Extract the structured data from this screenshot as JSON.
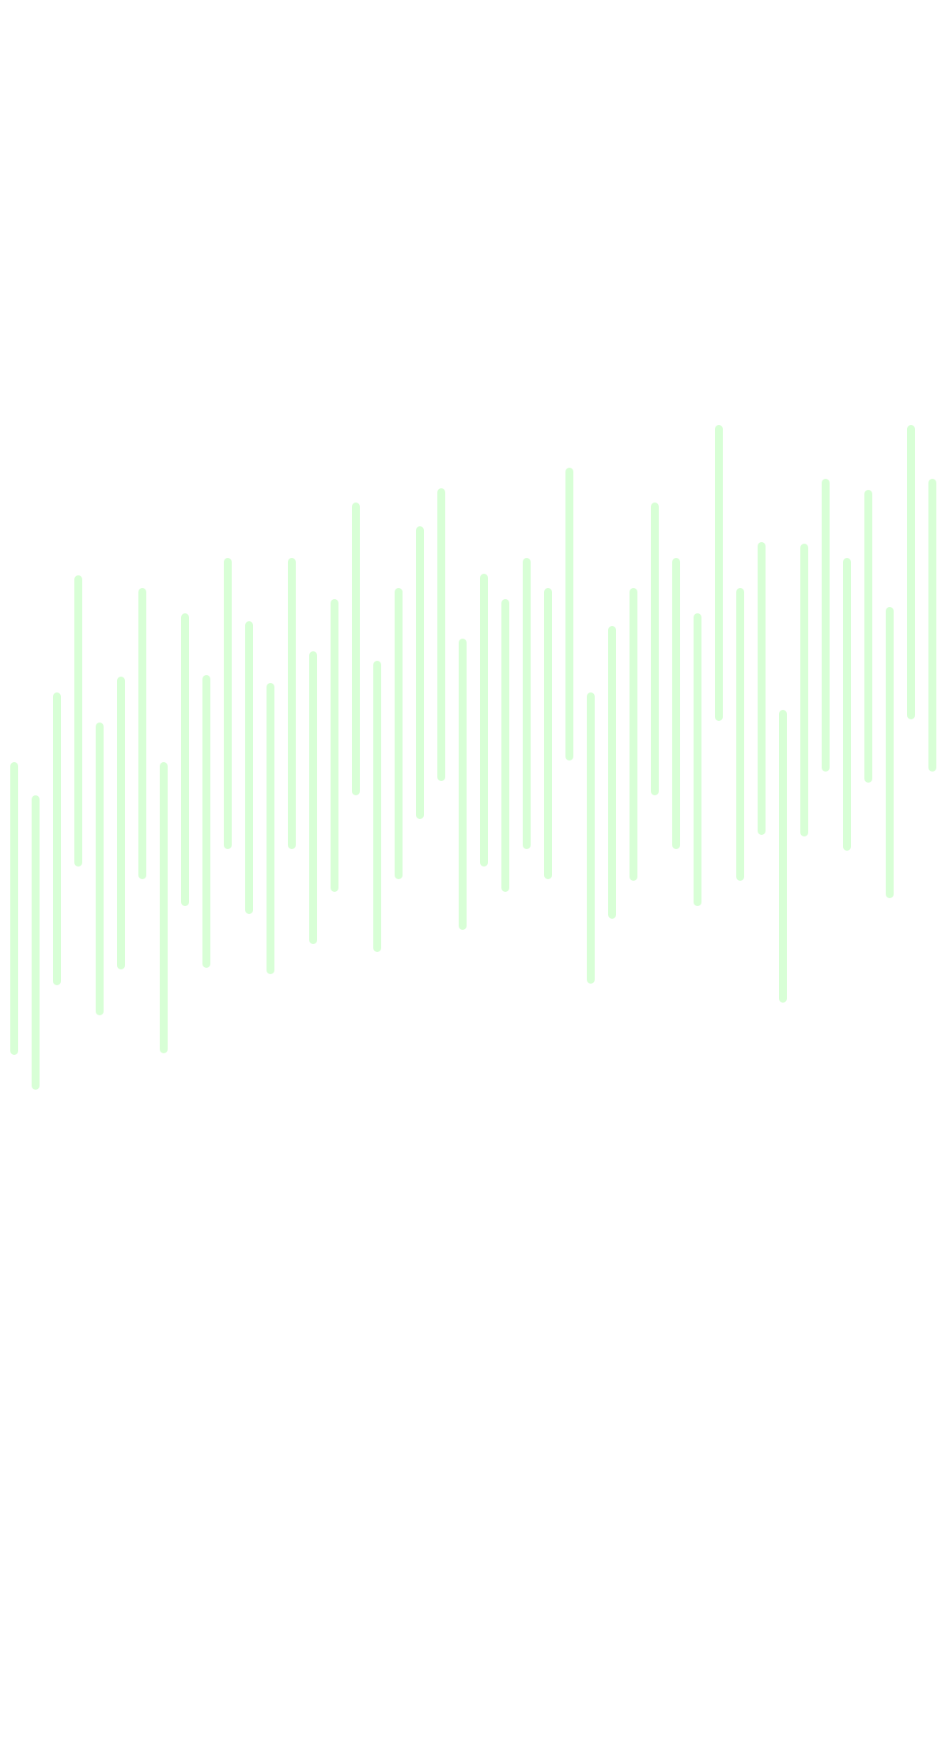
{
  "background_color": "#ffffff",
  "bar_color": "#d8ffd6",
  "bar_count": 44
}
